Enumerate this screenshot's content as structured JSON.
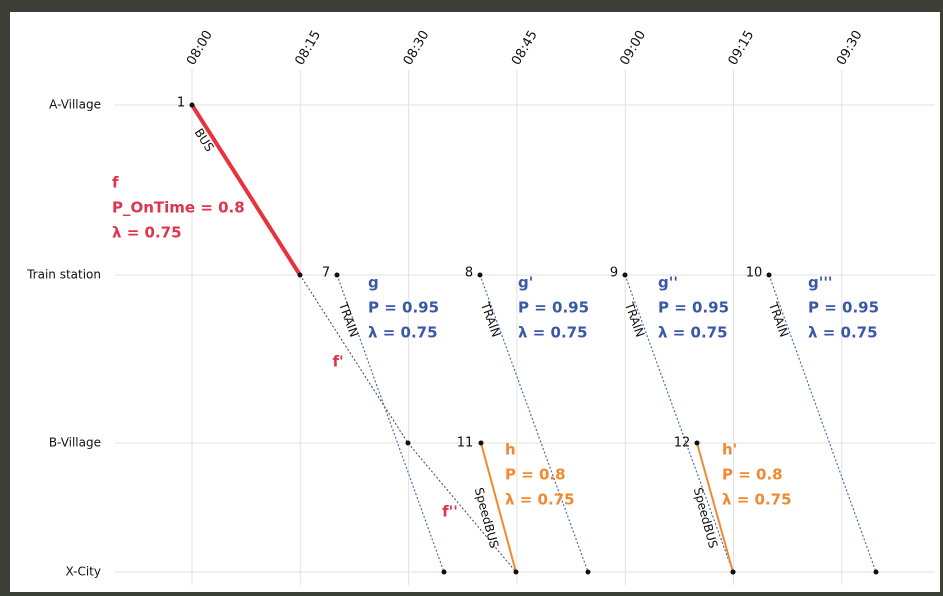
{
  "times": [
    "08:00",
    "08:15",
    "08:30",
    "08:45",
    "09:00",
    "09:15",
    "09:30"
  ],
  "stations": [
    "A-Village",
    "Train station",
    "B-Village",
    "X-City"
  ],
  "trips": [
    {
      "id": "1",
      "mode": "BUS",
      "lines": [
        "f",
        "P_OnTime = 0.8",
        "λ = 0.75"
      ]
    },
    {
      "id": "7",
      "mode": "TRAIN",
      "lines": [
        "g",
        "P = 0.95",
        "λ = 0.75"
      ]
    },
    {
      "id": "8",
      "mode": "TRAIN",
      "lines": [
        "g'",
        "P = 0.95",
        "λ = 0.75"
      ]
    },
    {
      "id": "9",
      "mode": "TRAIN",
      "lines": [
        "g''",
        "P = 0.95",
        "λ = 0.75"
      ]
    },
    {
      "id": "10",
      "mode": "TRAIN",
      "lines": [
        "g'''",
        "P = 0.95",
        "λ = 0.75"
      ]
    },
    {
      "id": "11",
      "mode": "SpeedBUS",
      "lines": [
        "h",
        "P = 0.8",
        "λ = 0.75"
      ]
    },
    {
      "id": "12",
      "mode": "SpeedBUS",
      "lines": [
        "h'",
        "P = 0.8",
        "λ = 0.75"
      ]
    }
  ],
  "annotations": [
    "f'",
    "f''"
  ]
}
